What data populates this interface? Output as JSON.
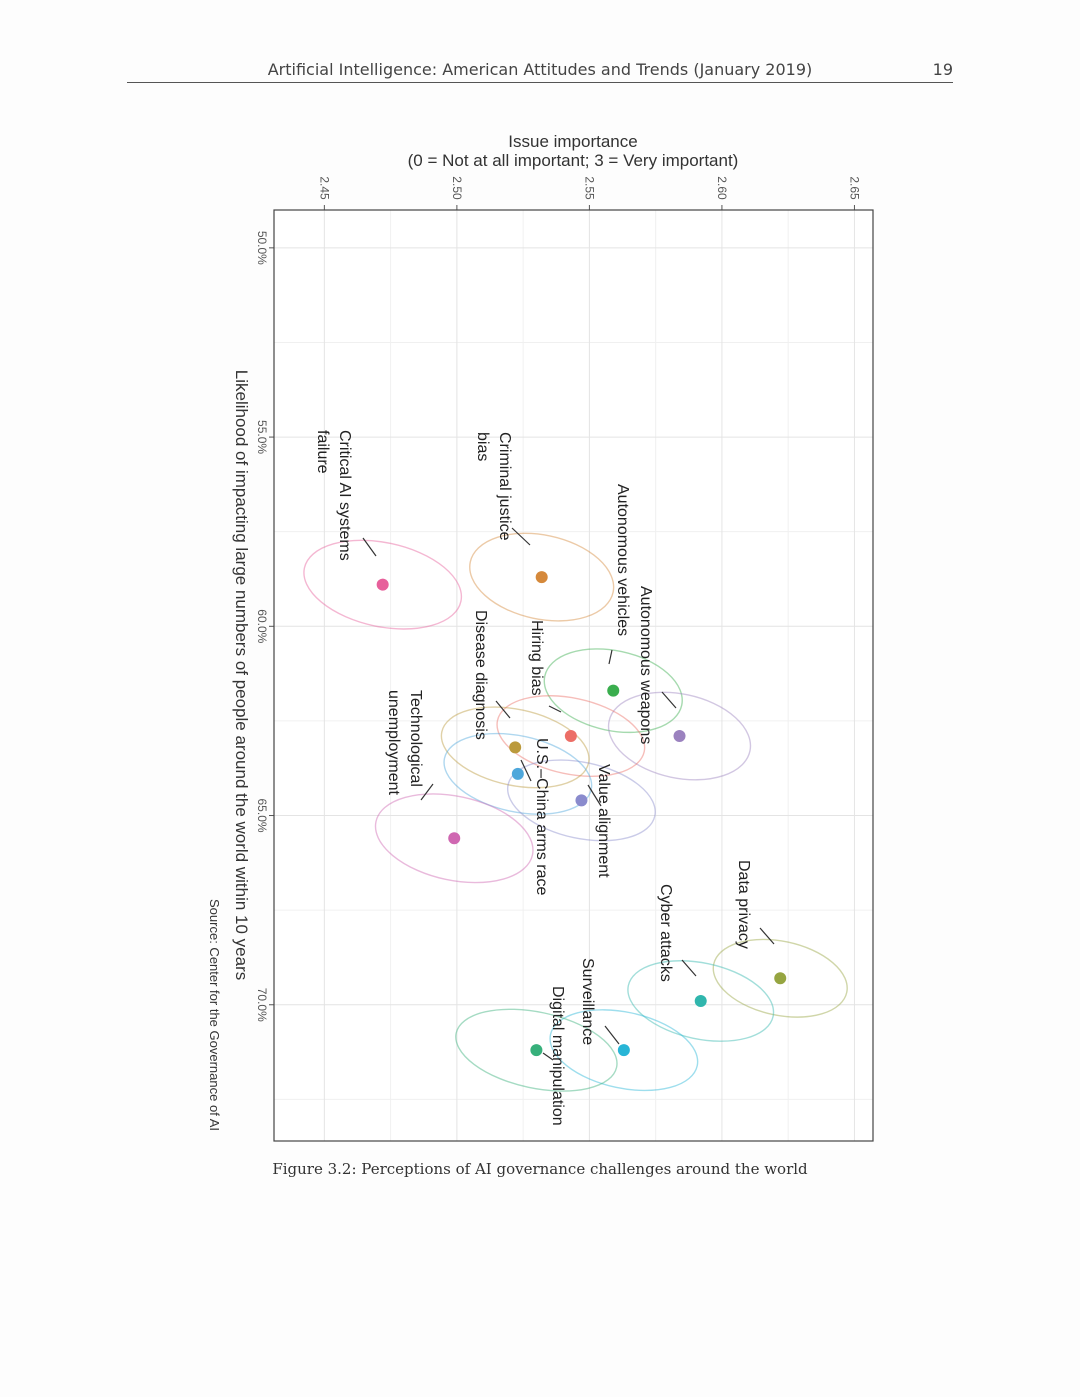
{
  "header": {
    "running_title": "Artificial Intelligence: American Attitudes and Trends (January 2019)",
    "page_number": "19"
  },
  "figure": {
    "caption": "Figure 3.2: Perceptions of AI governance challenges around the world"
  },
  "colors": {
    "Critical AI systems failure": "#e7609b",
    "Criminal justice bias": "#d5893b",
    "Autonomous vehicles": "#3aae4e",
    "Autonomous weapons": "#9b82bf",
    "Hiring bias": "#ec6e66",
    "Disease diagnosis": "#bb9a3c",
    "U.S.–China arms race": "#4ea7db",
    "Value alignment": "#8a8bcd",
    "Technological unemployment": "#cf67b1",
    "Data privacy": "#96a541",
    "Cyber attacks": "#30b6ad",
    "Surveillance": "#28b5d6",
    "Digital manipulation": "#37b07b"
  },
  "chart_data": {
    "type": "scatter",
    "orientation": "rotated 90° clockwise on page",
    "x_title": "Likelihood of impacting large numbers of people around the world within 10 years",
    "y_title_line1": "Issue importance",
    "y_title_line2": "(0 = Not at all important; 3 = Very important)",
    "source": "Source: Center for the Governance of AI",
    "xlim": [
      49.0,
      73.6
    ],
    "ylim": [
      2.431,
      2.657
    ],
    "x_ticks": [
      50,
      55,
      60,
      65,
      70
    ],
    "x_tick_labels": [
      "50.0%",
      "55.0%",
      "60.0%",
      "65.0%",
      "70.0%"
    ],
    "y_ticks": [
      2.45,
      2.5,
      2.55,
      2.6,
      2.65
    ],
    "y_tick_labels": [
      "2.45",
      "2.50",
      "2.55",
      "2.60",
      "2.65"
    ],
    "points": [
      {
        "name": "Critical AI systems failure",
        "label_lines": [
          "Critical AI systems",
          "failure"
        ],
        "x": 58.9,
        "y": 2.472
      },
      {
        "name": "Criminal justice bias",
        "label_lines": [
          "Criminal justice",
          "bias"
        ],
        "x": 58.7,
        "y": 2.532
      },
      {
        "name": "Autonomous vehicles",
        "label_lines": [
          "Autonomous vehicles"
        ],
        "x": 61.7,
        "y": 2.559
      },
      {
        "name": "Autonomous weapons",
        "label_lines": [
          "Autonomous weapons"
        ],
        "x": 62.9,
        "y": 2.584
      },
      {
        "name": "Hiring bias",
        "label_lines": [
          "Hiring bias"
        ],
        "x": 62.9,
        "y": 2.543
      },
      {
        "name": "Disease diagnosis",
        "label_lines": [
          "Disease diagnosis"
        ],
        "x": 63.2,
        "y": 2.522
      },
      {
        "name": "U.S.–China arms race",
        "label_lines": [
          "U.S.–China arms race"
        ],
        "x": 63.9,
        "y": 2.523
      },
      {
        "name": "Value alignment",
        "label_lines": [
          "Value alignment"
        ],
        "x": 64.6,
        "y": 2.547
      },
      {
        "name": "Technological unemployment",
        "label_lines": [
          "Technological",
          "unemployment"
        ],
        "x": 65.6,
        "y": 2.499
      },
      {
        "name": "Data privacy",
        "label_lines": [
          "Data privacy"
        ],
        "x": 69.3,
        "y": 2.622
      },
      {
        "name": "Cyber attacks",
        "label_lines": [
          "Cyber attacks"
        ],
        "x": 69.9,
        "y": 2.592
      },
      {
        "name": "Surveillance",
        "label_lines": [
          "Surveillance"
        ],
        "x": 71.2,
        "y": 2.563
      },
      {
        "name": "Digital manipulation",
        "label_lines": [
          "Digital manipulation"
        ],
        "x": 71.2,
        "y": 2.53
      }
    ]
  }
}
